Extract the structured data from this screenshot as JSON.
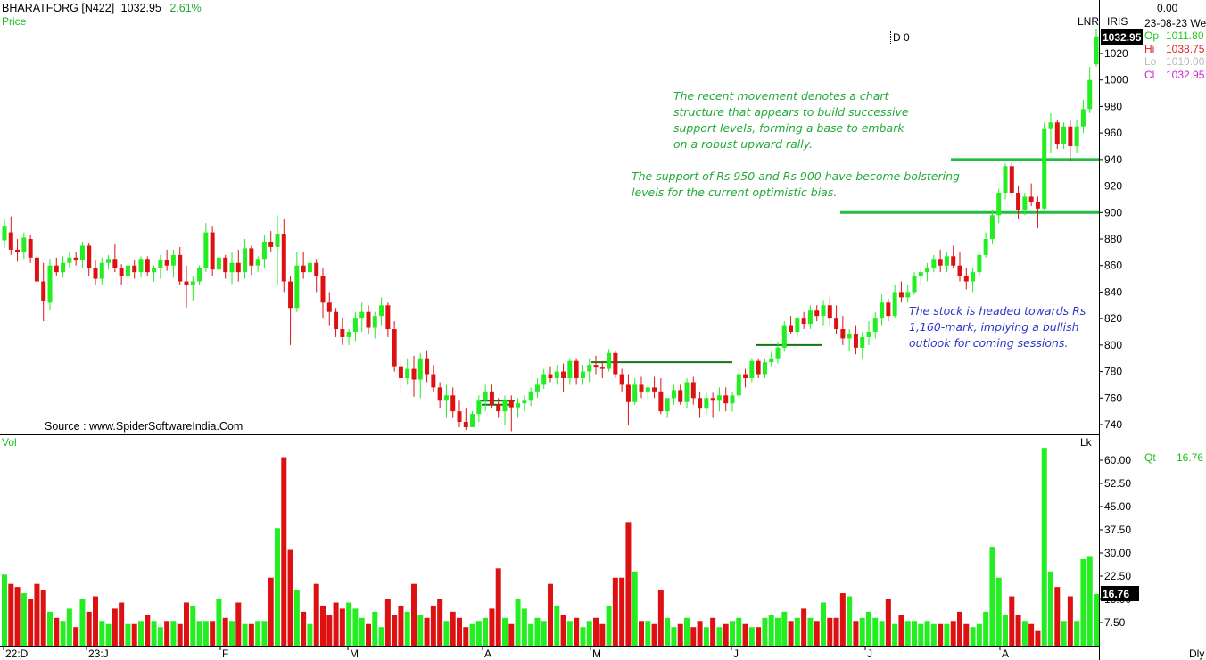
{
  "header": {
    "symbol": "BHARATFORG [N422]",
    "last_price": "1032.95",
    "change_pct": "2.61%",
    "panel_label": "Price",
    "cursor_label": "D 0",
    "scale_mode": "LNR",
    "indicator": "IRIS",
    "top_value": "0.00",
    "date_readout": "23-08-23 We",
    "price_box": "1032.95",
    "source": "Source : www.SpiderSoftwareIndia.Com"
  },
  "ohlc": [
    {
      "label": "Op",
      "value": "1011.80",
      "color": "#22cc22"
    },
    {
      "label": "Hi",
      "value": "1038.75",
      "color": "#dd2222"
    },
    {
      "label": "Lo",
      "value": "1010.00",
      "color": "#bbbbbb"
    },
    {
      "label": "Cl",
      "value": "1032.95",
      "color": "#cc22cc"
    }
  ],
  "annotations": {
    "note1": "The recent movement denotes a chart\nstructure that appears to build successive\nsupport levels, forming a base to embark\non a robust upward rally.",
    "note2": "The support of Rs 950 and Rs 900 have become bolstering\nlevels for the current optimistic bias.",
    "note3": "The stock is headed towards Rs\n1,160-mark, implying a bullish\noutlook for coming sessions."
  },
  "volume_panel": {
    "label": "Vol",
    "unit": "Lk",
    "qty_label": "Qt",
    "qty_value": "16.76",
    "last_box": "16.76"
  },
  "colors": {
    "up": "#22ee22",
    "down": "#dd1111",
    "support": "#22bb44",
    "resistance": "#117711",
    "axis": "#000000"
  },
  "chart_data": {
    "type": "candlestick",
    "price_axis": {
      "ticks": [
        740,
        760,
        780,
        800,
        820,
        840,
        860,
        880,
        900,
        920,
        940,
        960,
        980,
        1000,
        1020
      ],
      "range": [
        732,
        1050
      ]
    },
    "volume_axis": {
      "ticks": [
        "7.50",
        "15.00",
        "22.50",
        "30.00",
        "37.50",
        "45.00",
        "52.50",
        "60.00"
      ],
      "range": [
        0,
        64
      ]
    },
    "x_labels": [
      "22:D",
      "23:J",
      "F",
      "M",
      "A",
      "M",
      "J",
      "J",
      "A"
    ],
    "timeframe": "Dly",
    "support_levels": [
      900,
      940
    ],
    "breakout_levels": [
      787,
      800,
      758,
      755
    ],
    "candles": [
      [
        879,
        895,
        873,
        890,
        23.0
      ],
      [
        885,
        897,
        868,
        872,
        20.0
      ],
      [
        872,
        880,
        863,
        870,
        19.0
      ],
      [
        870,
        885,
        865,
        881,
        17.0
      ],
      [
        880,
        883,
        862,
        866,
        15.0
      ],
      [
        866,
        868,
        845,
        848,
        20.0
      ],
      [
        848,
        862,
        818,
        833,
        18.0
      ],
      [
        832,
        865,
        826,
        860,
        11.0
      ],
      [
        860,
        866,
        852,
        855,
        9.0
      ],
      [
        855,
        867,
        851,
        862,
        8.0
      ],
      [
        862,
        870,
        858,
        866,
        12.0
      ],
      [
        866,
        870,
        860,
        864,
        6.0
      ],
      [
        864,
        878,
        858,
        875,
        15.0
      ],
      [
        875,
        877,
        852,
        858,
        11.0
      ],
      [
        858,
        864,
        845,
        850,
        16.0
      ],
      [
        850,
        866,
        845,
        862,
        8.0
      ],
      [
        862,
        868,
        857,
        865,
        7.0
      ],
      [
        865,
        876,
        855,
        858,
        12.0
      ],
      [
        858,
        861,
        845,
        852,
        14.0
      ],
      [
        852,
        862,
        845,
        860,
        7.0
      ],
      [
        860,
        864,
        850,
        855,
        7.0
      ],
      [
        855,
        867,
        851,
        865,
        8.0
      ],
      [
        865,
        867,
        852,
        855,
        10.0
      ],
      [
        855,
        860,
        848,
        858,
        8.0
      ],
      [
        858,
        868,
        850,
        864,
        6.0
      ],
      [
        864,
        872,
        856,
        860,
        8.0
      ],
      [
        860,
        872,
        851,
        868,
        8.0
      ],
      [
        868,
        874,
        845,
        848,
        7.0
      ],
      [
        848,
        860,
        828,
        845,
        14.0
      ],
      [
        845,
        852,
        833,
        848,
        13.0
      ],
      [
        848,
        860,
        845,
        858,
        8.0
      ],
      [
        858,
        892,
        855,
        885,
        8.0
      ],
      [
        885,
        890,
        852,
        857,
        8.0
      ],
      [
        857,
        870,
        850,
        866,
        15.0
      ],
      [
        866,
        868,
        850,
        855,
        9.0
      ],
      [
        855,
        870,
        846,
        862,
        8.0
      ],
      [
        862,
        872,
        848,
        855,
        14.0
      ],
      [
        855,
        880,
        850,
        873,
        7.0
      ],
      [
        873,
        875,
        853,
        860,
        7.0
      ],
      [
        860,
        867,
        855,
        865,
        8.0
      ],
      [
        865,
        883,
        858,
        878,
        8.0
      ],
      [
        878,
        886,
        870,
        874,
        22.0
      ],
      [
        874,
        898,
        845,
        884,
        38.0
      ],
      [
        884,
        895,
        840,
        848,
        61.0
      ],
      [
        848,
        852,
        800,
        828,
        31.0
      ],
      [
        828,
        870,
        825,
        860,
        18.0
      ],
      [
        860,
        870,
        850,
        855,
        11.0
      ],
      [
        855,
        868,
        848,
        862,
        7.0
      ],
      [
        862,
        865,
        840,
        852,
        20.0
      ],
      [
        852,
        858,
        820,
        832,
        13.0
      ],
      [
        832,
        840,
        815,
        825,
        10.0
      ],
      [
        825,
        828,
        806,
        812,
        14.0
      ],
      [
        812,
        820,
        800,
        806,
        12.0
      ],
      [
        806,
        812,
        800,
        810,
        14.0
      ],
      [
        810,
        825,
        803,
        820,
        12.0
      ],
      [
        820,
        832,
        810,
        825,
        9.0
      ],
      [
        825,
        830,
        808,
        813,
        7.0
      ],
      [
        813,
        825,
        805,
        822,
        11.0
      ],
      [
        822,
        836,
        815,
        830,
        6.0
      ],
      [
        830,
        832,
        806,
        812,
        15.0
      ],
      [
        812,
        818,
        780,
        784,
        10.0
      ],
      [
        784,
        790,
        763,
        775,
        13.0
      ],
      [
        775,
        790,
        770,
        782,
        11.0
      ],
      [
        782,
        792,
        761,
        774,
        20.0
      ],
      [
        774,
        794,
        760,
        790,
        10.0
      ],
      [
        790,
        796,
        772,
        778,
        9.0
      ],
      [
        778,
        785,
        765,
        768,
        13.0
      ],
      [
        768,
        772,
        752,
        758,
        15.0
      ],
      [
        758,
        770,
        745,
        762,
        8.0
      ],
      [
        762,
        768,
        745,
        750,
        11.0
      ],
      [
        750,
        758,
        738,
        742,
        9.0
      ],
      [
        742,
        752,
        736,
        738,
        6.0
      ],
      [
        738,
        750,
        738,
        748,
        7.0
      ],
      [
        748,
        762,
        742,
        758,
        8.0
      ],
      [
        758,
        770,
        750,
        765,
        9.0
      ],
      [
        765,
        770,
        752,
        755,
        12.0
      ],
      [
        755,
        760,
        745,
        750,
        25.0
      ],
      [
        750,
        762,
        740,
        758,
        9.0
      ],
      [
        758,
        762,
        735,
        753,
        7.0
      ],
      [
        753,
        760,
        745,
        756,
        15.0
      ],
      [
        756,
        762,
        750,
        758,
        12.0
      ],
      [
        758,
        768,
        754,
        765,
        7.0
      ],
      [
        765,
        775,
        760,
        770,
        9.0
      ],
      [
        770,
        782,
        767,
        778,
        8.0
      ],
      [
        778,
        784,
        772,
        775,
        20.0
      ],
      [
        775,
        785,
        770,
        780,
        13.0
      ],
      [
        780,
        786,
        765,
        775,
        10.0
      ],
      [
        775,
        790,
        770,
        788,
        8.0
      ],
      [
        788,
        790,
        770,
        775,
        9.0
      ],
      [
        775,
        785,
        770,
        780,
        6.0
      ],
      [
        780,
        790,
        772,
        785,
        8.0
      ],
      [
        785,
        792,
        778,
        783,
        9.0
      ],
      [
        783,
        788,
        775,
        782,
        7.0
      ],
      [
        782,
        797,
        780,
        794,
        13.0
      ],
      [
        794,
        796,
        775,
        778,
        22.0
      ],
      [
        778,
        782,
        765,
        770,
        22.0
      ],
      [
        770,
        778,
        740,
        757,
        40.0
      ],
      [
        757,
        775,
        755,
        770,
        24.0
      ],
      [
        770,
        776,
        760,
        765,
        8.0
      ],
      [
        765,
        770,
        758,
        768,
        8.0
      ],
      [
        768,
        776,
        760,
        765,
        7.0
      ],
      [
        765,
        775,
        748,
        750,
        18.0
      ],
      [
        750,
        760,
        745,
        760,
        9.0
      ],
      [
        760,
        770,
        755,
        766,
        6.0
      ],
      [
        766,
        770,
        755,
        757,
        7.0
      ],
      [
        757,
        775,
        752,
        772,
        9.0
      ],
      [
        772,
        776,
        755,
        760,
        6.0
      ],
      [
        760,
        765,
        745,
        752,
        8.0
      ],
      [
        752,
        765,
        748,
        760,
        6.0
      ],
      [
        760,
        764,
        745,
        758,
        9.0
      ],
      [
        758,
        768,
        750,
        762,
        6.0
      ],
      [
        762,
        768,
        750,
        756,
        7.0
      ],
      [
        756,
        765,
        750,
        762,
        8.0
      ],
      [
        762,
        782,
        760,
        778,
        9.0
      ],
      [
        778,
        782,
        768,
        775,
        7.0
      ],
      [
        775,
        790,
        772,
        788,
        6.0
      ],
      [
        788,
        790,
        775,
        778,
        6.0
      ],
      [
        778,
        790,
        775,
        787,
        9.0
      ],
      [
        787,
        795,
        784,
        790,
        10.0
      ],
      [
        790,
        802,
        786,
        798,
        9.0
      ],
      [
        798,
        818,
        795,
        815,
        11.0
      ],
      [
        815,
        822,
        808,
        810,
        8.0
      ],
      [
        810,
        822,
        806,
        820,
        9.0
      ],
      [
        820,
        825,
        812,
        816,
        12.0
      ],
      [
        816,
        830,
        812,
        826,
        9.0
      ],
      [
        826,
        830,
        818,
        822,
        8.0
      ],
      [
        822,
        834,
        815,
        830,
        14.0
      ],
      [
        830,
        836,
        815,
        820,
        9.0
      ],
      [
        820,
        830,
        808,
        812,
        9.0
      ],
      [
        812,
        822,
        800,
        805,
        17.0
      ],
      [
        805,
        812,
        795,
        808,
        16.0
      ],
      [
        808,
        815,
        793,
        798,
        8.0
      ],
      [
        798,
        810,
        790,
        806,
        9.0
      ],
      [
        806,
        818,
        800,
        810,
        11.0
      ],
      [
        810,
        825,
        805,
        820,
        9.0
      ],
      [
        820,
        838,
        815,
        832,
        8.0
      ],
      [
        832,
        835,
        818,
        822,
        15.0
      ],
      [
        822,
        845,
        820,
        840,
        7.0
      ],
      [
        840,
        848,
        832,
        836,
        10.0
      ],
      [
        836,
        845,
        832,
        840,
        8.0
      ],
      [
        840,
        855,
        838,
        852,
        8.0
      ],
      [
        852,
        858,
        845,
        855,
        7.0
      ],
      [
        855,
        862,
        848,
        858,
        8.0
      ],
      [
        858,
        868,
        855,
        865,
        7.0
      ],
      [
        865,
        872,
        855,
        860,
        7.0
      ],
      [
        860,
        870,
        855,
        867,
        7.0
      ],
      [
        867,
        875,
        858,
        860,
        8.0
      ],
      [
        860,
        870,
        848,
        852,
        11.0
      ],
      [
        852,
        858,
        842,
        848,
        7.0
      ],
      [
        848,
        858,
        840,
        855,
        6.0
      ],
      [
        855,
        870,
        852,
        868,
        7.0
      ],
      [
        868,
        885,
        866,
        880,
        11.0
      ],
      [
        880,
        902,
        876,
        898,
        32.0
      ],
      [
        898,
        918,
        892,
        915,
        22.0
      ],
      [
        915,
        937,
        910,
        935,
        10.0
      ],
      [
        935,
        938,
        912,
        915,
        16.0
      ],
      [
        915,
        920,
        895,
        902,
        10.0
      ],
      [
        902,
        915,
        898,
        912,
        8.0
      ],
      [
        912,
        922,
        905,
        908,
        7.0
      ],
      [
        908,
        912,
        888,
        903,
        5.0
      ],
      [
        903,
        968,
        900,
        963,
        64.0
      ],
      [
        963,
        975,
        945,
        968,
        24.0
      ],
      [
        968,
        970,
        948,
        952,
        19.0
      ],
      [
        952,
        968,
        948,
        965,
        8.0
      ],
      [
        965,
        970,
        938,
        950,
        16.0
      ],
      [
        950,
        970,
        945,
        965,
        8.0
      ],
      [
        965,
        985,
        960,
        978,
        28.0
      ],
      [
        978,
        1010,
        975,
        1000,
        29.0
      ],
      [
        1011.8,
        1038.75,
        1010,
        1032.95,
        16.76
      ]
    ]
  }
}
